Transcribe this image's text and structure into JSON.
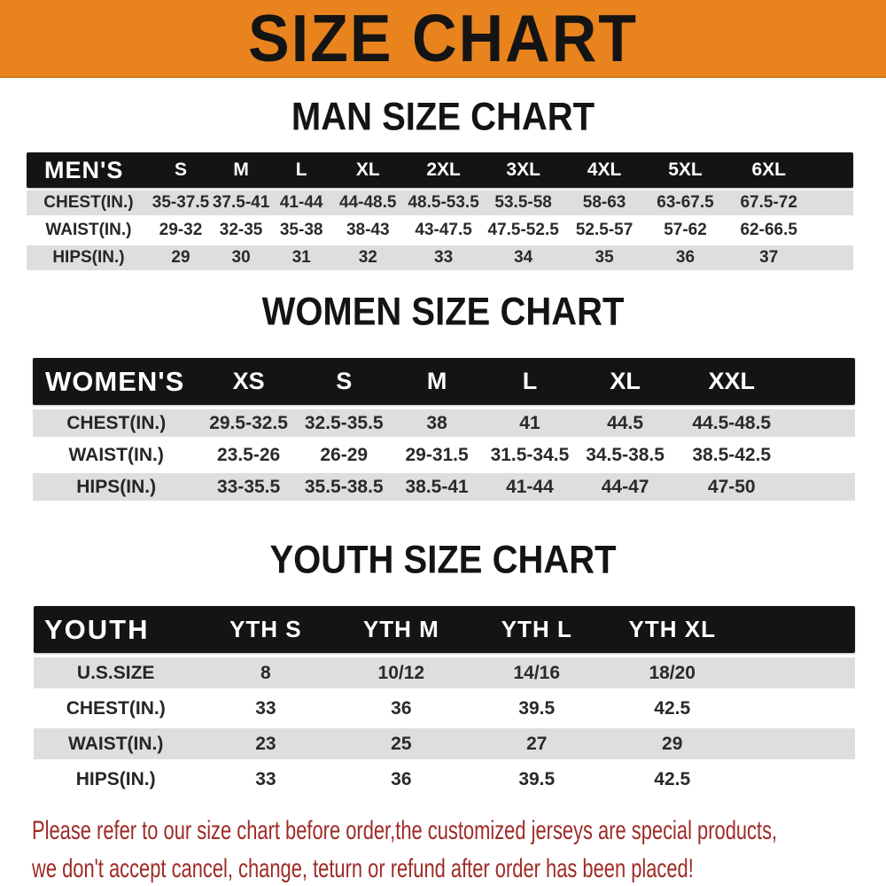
{
  "banner": {
    "title": "SIZE CHART",
    "bg_color": "#E8831E",
    "text_color": "#141414"
  },
  "tables": [
    {
      "id": "men",
      "section_title": "MAN SIZE CHART",
      "header_label": "MEN'S",
      "columns": [
        "S",
        "M",
        "L",
        "XL",
        "2XL",
        "3XL",
        "4XL",
        "5XL",
        "6XL"
      ],
      "rows": [
        {
          "label": "CHEST(IN.)",
          "cells": [
            "35-37.5",
            "37.5-41",
            "41-44",
            "44-48.5",
            "48.5-53.5",
            "53.5-58",
            "58-63",
            "63-67.5",
            "67.5-72"
          ]
        },
        {
          "label": "WAIST(IN.)",
          "cells": [
            "29-32",
            "32-35",
            "35-38",
            "38-43",
            "43-47.5",
            "47.5-52.5",
            "52.5-57",
            "57-62",
            "62-66.5"
          ]
        },
        {
          "label": "HIPS(IN.)",
          "cells": [
            "29",
            "30",
            "31",
            "32",
            "33",
            "34",
            "35",
            "36",
            "37"
          ]
        }
      ]
    },
    {
      "id": "women",
      "section_title": "WOMEN SIZE CHART",
      "header_label": "WOMEN'S",
      "columns": [
        "XS",
        "S",
        "M",
        "L",
        "XL",
        "XXL"
      ],
      "rows": [
        {
          "label": "CHEST(IN.)",
          "cells": [
            "29.5-32.5",
            "32.5-35.5",
            "38",
            "41",
            "44.5",
            "44.5-48.5"
          ]
        },
        {
          "label": "WAIST(IN.)",
          "cells": [
            "23.5-26",
            "26-29",
            "29-31.5",
            "31.5-34.5",
            "34.5-38.5",
            "38.5-42.5"
          ]
        },
        {
          "label": "HIPS(IN.)",
          "cells": [
            "33-35.5",
            "35.5-38.5",
            "38.5-41",
            "41-44",
            "44-47",
            "47-50"
          ]
        }
      ]
    },
    {
      "id": "youth",
      "section_title": "YOUTH SIZE CHART",
      "header_label": "YOUTH",
      "columns": [
        "YTH S",
        "YTH M",
        "YTH L",
        "YTH XL"
      ],
      "rows": [
        {
          "label": "U.S.SIZE",
          "cells": [
            "8",
            "10/12",
            "14/16",
            "18/20"
          ]
        },
        {
          "label": "CHEST(IN.)",
          "cells": [
            "33",
            "36",
            "39.5",
            "42.5"
          ]
        },
        {
          "label": "WAIST(IN.)",
          "cells": [
            "23",
            "25",
            "27",
            "29"
          ]
        },
        {
          "label": "HIPS(IN.)",
          "cells": [
            "33",
            "36",
            "39.5",
            "42.5"
          ]
        }
      ]
    }
  ],
  "disclaimer": {
    "line1": "Please refer to our size chart before order,the customized jerseys are special products,",
    "line2": "we don't accept cancel, change, teturn or refund after order has been placed!",
    "color": "#9E2B26"
  },
  "colors": {
    "header_bar": "#141414",
    "stripe_gray": "#DEDEDE",
    "cell_text": "#2A2A2A"
  }
}
